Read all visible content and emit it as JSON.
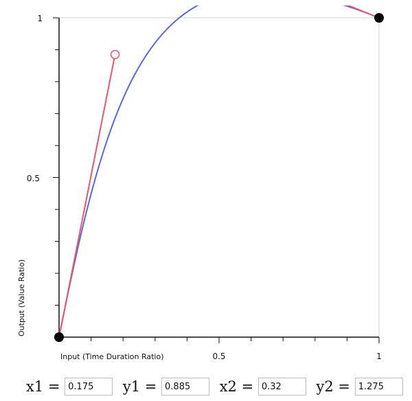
{
  "chart_data": {
    "type": "line",
    "xlabel": "Input (Time Duration Ratio)",
    "ylabel": "Output (Value Ratio)",
    "xlim": [
      0,
      1
    ],
    "ylim": [
      0,
      1
    ],
    "x_tick_labels": [
      "0.5",
      "1"
    ],
    "y_tick_labels": [
      "0.5",
      "1"
    ],
    "start_point": [
      0,
      0
    ],
    "end_point": [
      1,
      1
    ],
    "control_point_1": [
      0.175,
      0.885
    ],
    "control_point_2": [
      0.32,
      1.275
    ],
    "colors": {
      "curve": "#5566ee",
      "handle": "#ee5566",
      "grid": "#d0d0d0",
      "axis": "#111111"
    },
    "grid": "frame-only",
    "minor_ticks": 10
  },
  "controls": [
    {
      "id": "x1",
      "label": "x1 = ",
      "value": "0.175"
    },
    {
      "id": "y1",
      "label": " y1 = ",
      "value": "0.885"
    },
    {
      "id": "x2",
      "label": " x2 = ",
      "value": "0.32"
    },
    {
      "id": "y2",
      "label": " y2 = ",
      "value": "1.275"
    }
  ]
}
